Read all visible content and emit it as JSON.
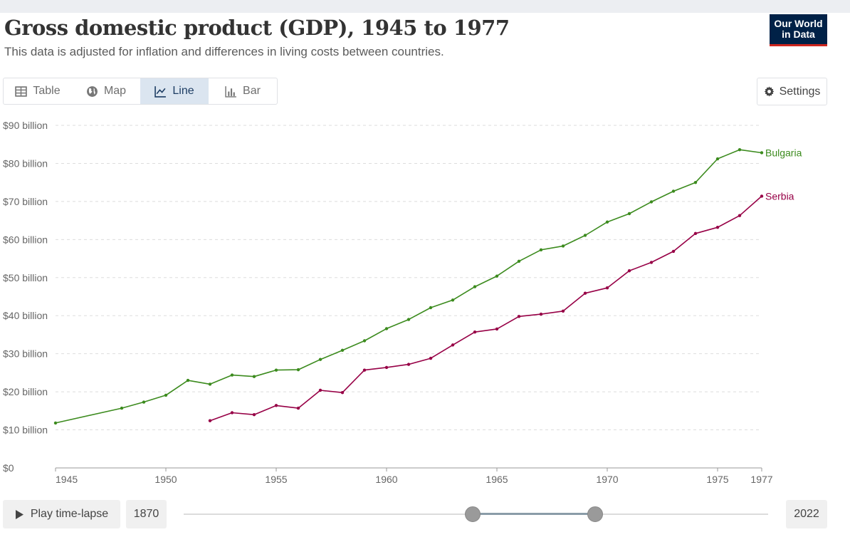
{
  "header": {
    "title": "Gross domestic product (GDP), 1945 to 1977",
    "subtitle": "This data is adjusted for inflation and differences in living costs between countries.",
    "logo_line1": "Our World",
    "logo_line2": "in Data"
  },
  "tabs": [
    {
      "label": "Table",
      "icon": "table-icon",
      "active": false
    },
    {
      "label": "Map",
      "icon": "globe-icon",
      "active": false
    },
    {
      "label": "Line",
      "icon": "line-chart-icon",
      "active": true
    },
    {
      "label": "Bar",
      "icon": "bar-chart-icon",
      "active": false
    }
  ],
  "settings_label": "Settings",
  "timeline": {
    "play_label": "Play time-lapse",
    "start_year": "1870",
    "end_year": "2022",
    "range_start": 1945,
    "range_end": 1977
  },
  "colors": {
    "bulgaria": "#3c8b1e",
    "serbia": "#970046",
    "active_tab_bg": "#dbe5f0"
  },
  "chart_data": {
    "type": "line",
    "title": "Gross domestic product (GDP), 1945 to 1977",
    "ylim": [
      0,
      90
    ],
    "xlim": [
      1945,
      1977
    ],
    "y_ticks": [
      {
        "value": 0,
        "label": "$0"
      },
      {
        "value": 10,
        "label": "$10 billion"
      },
      {
        "value": 20,
        "label": "$20 billion"
      },
      {
        "value": 30,
        "label": "$30 billion"
      },
      {
        "value": 40,
        "label": "$40 billion"
      },
      {
        "value": 50,
        "label": "$50 billion"
      },
      {
        "value": 60,
        "label": "$60 billion"
      },
      {
        "value": 70,
        "label": "$70 billion"
      },
      {
        "value": 80,
        "label": "$80 billion"
      },
      {
        "value": 90,
        "label": "$90 billion"
      }
    ],
    "x_ticks": [
      {
        "value": 1945,
        "label": "1945"
      },
      {
        "value": 1950,
        "label": "1950"
      },
      {
        "value": 1955,
        "label": "1955"
      },
      {
        "value": 1960,
        "label": "1960"
      },
      {
        "value": 1965,
        "label": "1965"
      },
      {
        "value": 1970,
        "label": "1970"
      },
      {
        "value": 1975,
        "label": "1975"
      },
      {
        "value": 1977,
        "label": "1977"
      }
    ],
    "grid": true,
    "series": [
      {
        "name": "Bulgaria",
        "color": "#3c8b1e",
        "points": [
          [
            1945,
            11.8
          ],
          [
            1948,
            15.7
          ],
          [
            1949,
            17.3
          ],
          [
            1950,
            19.1
          ],
          [
            1951,
            23.0
          ],
          [
            1952,
            22.0
          ],
          [
            1953,
            24.4
          ],
          [
            1954,
            24.0
          ],
          [
            1955,
            25.7
          ],
          [
            1956,
            25.8
          ],
          [
            1957,
            28.5
          ],
          [
            1958,
            30.9
          ],
          [
            1959,
            33.4
          ],
          [
            1960,
            36.6
          ],
          [
            1961,
            39.0
          ],
          [
            1962,
            42.1
          ],
          [
            1963,
            44.1
          ],
          [
            1964,
            47.6
          ],
          [
            1965,
            50.4
          ],
          [
            1966,
            54.3
          ],
          [
            1967,
            57.3
          ],
          [
            1968,
            58.3
          ],
          [
            1969,
            61.1
          ],
          [
            1970,
            64.6
          ],
          [
            1971,
            66.8
          ],
          [
            1972,
            69.9
          ],
          [
            1973,
            72.7
          ],
          [
            1974,
            75.0
          ],
          [
            1975,
            81.2
          ],
          [
            1976,
            83.6
          ],
          [
            1977,
            82.8
          ]
        ]
      },
      {
        "name": "Serbia",
        "color": "#970046",
        "points": [
          [
            1952,
            12.4
          ],
          [
            1953,
            14.5
          ],
          [
            1954,
            14.0
          ],
          [
            1955,
            16.4
          ],
          [
            1956,
            15.7
          ],
          [
            1957,
            20.4
          ],
          [
            1958,
            19.8
          ],
          [
            1959,
            25.7
          ],
          [
            1960,
            26.4
          ],
          [
            1961,
            27.2
          ],
          [
            1962,
            28.8
          ],
          [
            1963,
            32.3
          ],
          [
            1964,
            35.7
          ],
          [
            1965,
            36.5
          ],
          [
            1966,
            39.8
          ],
          [
            1967,
            40.4
          ],
          [
            1968,
            41.2
          ],
          [
            1969,
            45.9
          ],
          [
            1970,
            47.3
          ],
          [
            1971,
            51.8
          ],
          [
            1972,
            54.0
          ],
          [
            1973,
            56.9
          ],
          [
            1974,
            61.6
          ],
          [
            1975,
            63.2
          ],
          [
            1976,
            66.3
          ],
          [
            1977,
            71.4
          ]
        ]
      }
    ]
  }
}
